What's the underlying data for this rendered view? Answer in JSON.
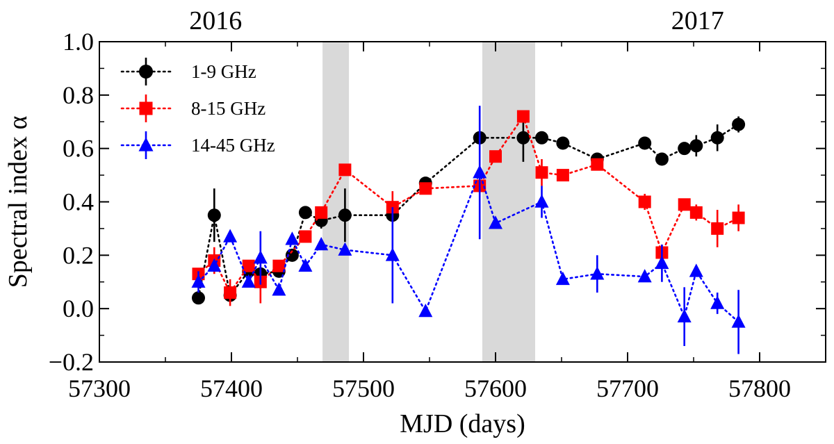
{
  "chart_data": {
    "type": "scatter",
    "xlabel": "MJD (days)",
    "ylabel": "Spectral index α",
    "xlim": [
      57300,
      57850
    ],
    "ylim": [
      -0.2,
      1.0
    ],
    "x_ticks": [
      57300,
      57400,
      57500,
      57600,
      57700,
      57800
    ],
    "x_tick_labels": [
      "57300",
      "57400",
      "57500",
      "57600",
      "57700",
      "57800"
    ],
    "y_ticks": [
      -0.2,
      0.0,
      0.2,
      0.4,
      0.6,
      0.8,
      1.0
    ],
    "y_tick_labels": [
      "−0.2",
      "0.0",
      "0.2",
      "0.4",
      "0.6",
      "0.8",
      "1.0"
    ],
    "top_labels": [
      {
        "text": "2016",
        "x": 57388
      },
      {
        "text": "2017",
        "x": 57753
      }
    ],
    "shaded_regions": [
      {
        "x0": 57469,
        "x1": 57489
      },
      {
        "x0": 57590,
        "x1": 57630
      }
    ],
    "legend_position": "top-left",
    "series": [
      {
        "name": "1-9 GHz",
        "color": "#000000",
        "marker": "circle",
        "points": [
          {
            "x": 57375,
            "y": 0.04,
            "err": 0.01
          },
          {
            "x": 57387,
            "y": 0.35,
            "err": 0.1
          },
          {
            "x": 57399,
            "y": 0.05,
            "err": 0.02
          },
          {
            "x": 57413,
            "y": 0.14,
            "err": 0.02
          },
          {
            "x": 57422,
            "y": 0.13,
            "err": 0.02
          },
          {
            "x": 57436,
            "y": 0.14,
            "err": 0.02
          },
          {
            "x": 57446,
            "y": 0.2,
            "err": 0.02
          },
          {
            "x": 57456,
            "y": 0.36,
            "err": 0.02
          },
          {
            "x": 57468,
            "y": 0.33,
            "err": 0.03
          },
          {
            "x": 57486,
            "y": 0.35,
            "err": 0.1
          },
          {
            "x": 57522,
            "y": 0.35,
            "err": 0.03
          },
          {
            "x": 57547,
            "y": 0.47,
            "err": 0.02
          },
          {
            "x": 57588,
            "y": 0.64,
            "err": 0.02
          },
          {
            "x": 57621,
            "y": 0.64,
            "err": 0.09
          },
          {
            "x": 57635,
            "y": 0.64,
            "err": 0.02
          },
          {
            "x": 57651,
            "y": 0.62,
            "err": 0.02
          },
          {
            "x": 57677,
            "y": 0.56,
            "err": 0.02
          },
          {
            "x": 57713,
            "y": 0.62,
            "err": 0.02
          },
          {
            "x": 57726,
            "y": 0.56,
            "err": 0.02
          },
          {
            "x": 57743,
            "y": 0.6,
            "err": 0.02
          },
          {
            "x": 57752,
            "y": 0.61,
            "err": 0.04
          },
          {
            "x": 57768,
            "y": 0.64,
            "err": 0.05
          },
          {
            "x": 57784,
            "y": 0.69,
            "err": 0.03
          }
        ]
      },
      {
        "name": "8-15 GHz",
        "color": "#ff0000",
        "marker": "square",
        "points": [
          {
            "x": 57375,
            "y": 0.13,
            "err": 0.02
          },
          {
            "x": 57387,
            "y": 0.18,
            "err": 0.05
          },
          {
            "x": 57399,
            "y": 0.06,
            "err": 0.05
          },
          {
            "x": 57413,
            "y": 0.16,
            "err": 0.02
          },
          {
            "x": 57422,
            "y": 0.1,
            "err": 0.08
          },
          {
            "x": 57436,
            "y": 0.16,
            "err": 0.02
          },
          {
            "x": 57456,
            "y": 0.27,
            "err": 0.02
          },
          {
            "x": 57468,
            "y": 0.36,
            "err": 0.02
          },
          {
            "x": 57486,
            "y": 0.52,
            "err": 0.02
          },
          {
            "x": 57522,
            "y": 0.38,
            "err": 0.06
          },
          {
            "x": 57547,
            "y": 0.45,
            "err": 0.02
          },
          {
            "x": 57588,
            "y": 0.46,
            "err": 0.02
          },
          {
            "x": 57600,
            "y": 0.57,
            "err": 0.02
          },
          {
            "x": 57621,
            "y": 0.72,
            "err": 0.02
          },
          {
            "x": 57635,
            "y": 0.51,
            "err": 0.05
          },
          {
            "x": 57651,
            "y": 0.5,
            "err": 0.02
          },
          {
            "x": 57677,
            "y": 0.54,
            "err": 0.02
          },
          {
            "x": 57713,
            "y": 0.4,
            "err": 0.03
          },
          {
            "x": 57726,
            "y": 0.21,
            "err": 0.03
          },
          {
            "x": 57743,
            "y": 0.39,
            "err": 0.02
          },
          {
            "x": 57752,
            "y": 0.36,
            "err": 0.03
          },
          {
            "x": 57768,
            "y": 0.3,
            "err": 0.07
          },
          {
            "x": 57784,
            "y": 0.34,
            "err": 0.05
          }
        ]
      },
      {
        "name": "14-45 GHz",
        "color": "#0000ff",
        "marker": "triangle",
        "points": [
          {
            "x": 57375,
            "y": 0.1,
            "err": 0.04
          },
          {
            "x": 57387,
            "y": 0.16,
            "err": 0.02
          },
          {
            "x": 57399,
            "y": 0.27,
            "err": 0.02
          },
          {
            "x": 57413,
            "y": 0.1,
            "err": 0.02
          },
          {
            "x": 57422,
            "y": 0.19,
            "err": 0.1
          },
          {
            "x": 57436,
            "y": 0.07,
            "err": 0.02
          },
          {
            "x": 57446,
            "y": 0.26,
            "err": 0.02
          },
          {
            "x": 57456,
            "y": 0.16,
            "err": 0.02
          },
          {
            "x": 57468,
            "y": 0.24,
            "err": 0.02
          },
          {
            "x": 57486,
            "y": 0.22,
            "err": 0.02
          },
          {
            "x": 57522,
            "y": 0.2,
            "err": 0.18
          },
          {
            "x": 57547,
            "y": -0.01,
            "err": 0.02
          },
          {
            "x": 57588,
            "y": 0.51,
            "err": 0.25
          },
          {
            "x": 57600,
            "y": 0.32,
            "err": 0.02
          },
          {
            "x": 57635,
            "y": 0.4,
            "err": 0.06
          },
          {
            "x": 57651,
            "y": 0.11,
            "err": 0.02
          },
          {
            "x": 57677,
            "y": 0.13,
            "err": 0.07
          },
          {
            "x": 57713,
            "y": 0.12,
            "err": 0.02
          },
          {
            "x": 57726,
            "y": 0.17,
            "err": 0.07
          },
          {
            "x": 57743,
            "y": -0.03,
            "err": 0.11
          },
          {
            "x": 57752,
            "y": 0.14,
            "err": 0.02
          },
          {
            "x": 57768,
            "y": 0.02,
            "err": 0.04
          },
          {
            "x": 57784,
            "y": -0.05,
            "err": 0.12
          }
        ]
      }
    ]
  }
}
